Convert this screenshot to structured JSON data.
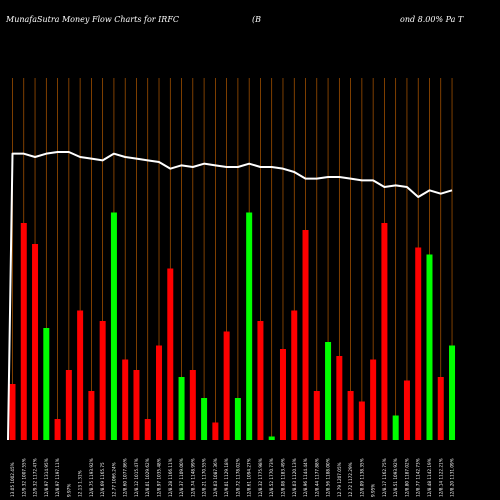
{
  "header": {
    "title_left": "MunafaSutra  Money Flow  Charts for IRFC",
    "title_mid": "(B",
    "title_right": "ond 8.00% Pa   T"
  },
  "colors": {
    "background": "#000000",
    "grid": "#b35900",
    "up": "#00ff00",
    "down": "#ff0000",
    "line": "#ffffff",
    "text": "#ffffff"
  },
  "chart_data": {
    "type": "bar",
    "grid": true,
    "ylim": [
      0,
      100
    ],
    "bars": [
      {
        "label": "13.05 1002.45%",
        "value": 16,
        "color": "red"
      },
      {
        "label": "12/9.32 1007.55%",
        "value": 62,
        "color": "red"
      },
      {
        "label": "12/9.32 1172.47%",
        "value": 56,
        "color": "red"
      },
      {
        "label": "12/8.97 1314.95%",
        "value": 32,
        "color": "green"
      },
      {
        "label": "12/8.97 1197.11%",
        "value": 6,
        "color": "red"
      },
      {
        "label": "9.97%",
        "value": 20,
        "color": "red"
      },
      {
        "label": "12.13 1.31%",
        "value": 37,
        "color": "red"
      },
      {
        "label": "12/8.75 1193.92%",
        "value": 14,
        "color": "red"
      },
      {
        "label": "12/8.69 1165.75",
        "value": 34,
        "color": "red"
      },
      {
        "label": "12.77 1066.24%",
        "value": 65,
        "color": "green"
      },
      {
        "label": "12/8.60 1077.86%",
        "value": 23,
        "color": "red"
      },
      {
        "label": "12/8.12 1015.47%",
        "value": 20,
        "color": "red"
      },
      {
        "label": "12/8.01 1029.62%",
        "value": 6,
        "color": "red"
      },
      {
        "label": "12/8.97 1035.48%",
        "value": 27,
        "color": "red"
      },
      {
        "label": "12/8.28 1166.11%",
        "value": 49,
        "color": "red"
      },
      {
        "label": "12/8.37 1109.00%",
        "value": 18,
        "color": "green"
      },
      {
        "label": "12/8.74 1148.99%",
        "value": 20,
        "color": "red"
      },
      {
        "label": "12/8.21 1170.55%",
        "value": 12,
        "color": "green"
      },
      {
        "label": "12/9.03 1087.36%",
        "value": 5,
        "color": "red"
      },
      {
        "label": "12/9.01 1129.18%",
        "value": 31,
        "color": "red"
      },
      {
        "label": "12/8.72 1178.02%",
        "value": 12,
        "color": "green"
      },
      {
        "label": "12/8.61 1094.27%",
        "value": 65,
        "color": "green"
      },
      {
        "label": "12/8.32 1775.98%",
        "value": 34,
        "color": "red"
      },
      {
        "label": "12/8.52 1770.73%",
        "value": 1,
        "color": "green"
      },
      {
        "label": "12/8.08 1183.49%",
        "value": 26,
        "color": "red"
      },
      {
        "label": "12/8.03 1120.13%",
        "value": 37,
        "color": "red"
      },
      {
        "label": "12/8.96 1144.44%",
        "value": 60,
        "color": "red"
      },
      {
        "label": "12/8.44 1177.88%",
        "value": 14,
        "color": "red"
      },
      {
        "label": "12/8.56 1188.00%",
        "value": 28,
        "color": "green"
      },
      {
        "label": "12.79 1207.05%",
        "value": 24,
        "color": "red"
      },
      {
        "label": "12.72 1172.29%",
        "value": 14,
        "color": "red"
      },
      {
        "label": "12/8.09 1138.35%",
        "value": 11,
        "color": "red"
      },
      {
        "label": "9.95%",
        "value": 23,
        "color": "red"
      },
      {
        "label": "12/8.17 1162.75%",
        "value": 62,
        "color": "red"
      },
      {
        "label": "12/8.51 1093.92%",
        "value": 7,
        "color": "green"
      },
      {
        "label": "12/8.80 1187.02%",
        "value": 17,
        "color": "red"
      },
      {
        "label": "12/8.77 1142.73%",
        "value": 55,
        "color": "red"
      },
      {
        "label": "12/8.48 1142.19%",
        "value": 53,
        "color": "green"
      },
      {
        "label": "12/8.14 1122.21%",
        "value": 18,
        "color": "red"
      },
      {
        "label": "12/8.20 1131.09%",
        "value": 27,
        "color": "green"
      }
    ],
    "line": [
      100,
      100,
      98,
      100,
      101,
      101,
      98,
      97,
      96,
      100,
      98,
      97,
      96,
      95,
      91,
      93,
      92,
      94,
      93,
      92,
      92,
      94,
      92,
      92,
      91,
      89,
      85,
      85,
      86,
      86,
      85,
      84,
      84,
      80,
      81,
      80,
      74,
      78,
      76,
      78
    ]
  }
}
